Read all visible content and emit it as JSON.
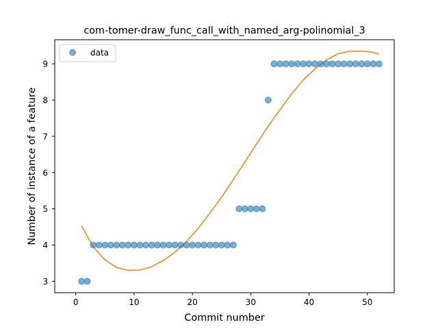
{
  "chart_data": {
    "type": "scatter",
    "title": "com-tomer-draw_func_call_with_named_arg-polinomial_3",
    "xlabel": "Commit number",
    "ylabel": "Number of instance of a feature",
    "xlim": [
      -3.6,
      54.6
    ],
    "ylim": [
      2.685,
      9.665
    ],
    "xticks": [
      0,
      10,
      20,
      30,
      40,
      50
    ],
    "yticks": [
      3,
      4,
      5,
      6,
      7,
      8,
      9
    ],
    "grid": false,
    "legend": {
      "position": "upper-left",
      "entries": [
        "data"
      ]
    },
    "series": [
      {
        "name": "data",
        "kind": "scatter",
        "color": "#1f77b4",
        "alpha": 0.6,
        "x": [
          1,
          2,
          3,
          4,
          5,
          6,
          7,
          8,
          9,
          10,
          11,
          12,
          13,
          14,
          15,
          16,
          17,
          18,
          19,
          20,
          21,
          22,
          23,
          24,
          25,
          26,
          27,
          28,
          29,
          30,
          31,
          32,
          33,
          34,
          35,
          36,
          37,
          38,
          39,
          40,
          41,
          42,
          43,
          44,
          45,
          46,
          47,
          48,
          49,
          50,
          51,
          52
        ],
        "y": [
          3,
          3,
          4,
          4,
          4,
          4,
          4,
          4,
          4,
          4,
          4,
          4,
          4,
          4,
          4,
          4,
          4,
          4,
          4,
          4,
          4,
          4,
          4,
          4,
          4,
          4,
          4,
          5,
          5,
          5,
          5,
          5,
          8,
          9,
          9,
          9,
          9,
          9,
          9,
          9,
          9,
          9,
          9,
          9,
          9,
          9,
          9,
          9,
          9,
          9,
          9,
          9
        ]
      },
      {
        "kind": "line",
        "color": "#ff7f0e",
        "x": [
          1,
          3,
          5,
          7,
          9,
          11,
          13,
          15,
          17,
          19,
          21,
          23,
          25,
          27,
          29,
          31,
          33,
          35,
          37,
          39,
          41,
          43,
          45,
          47,
          49,
          50,
          51,
          52
        ],
        "y": [
          4.53,
          3.95,
          3.59,
          3.38,
          3.3,
          3.31,
          3.4,
          3.57,
          3.8,
          4.1,
          4.46,
          4.88,
          5.32,
          5.8,
          6.29,
          6.79,
          7.28,
          7.73,
          8.17,
          8.55,
          8.86,
          9.11,
          9.28,
          9.35,
          9.35,
          9.34,
          9.31,
          9.27
        ]
      }
    ]
  }
}
